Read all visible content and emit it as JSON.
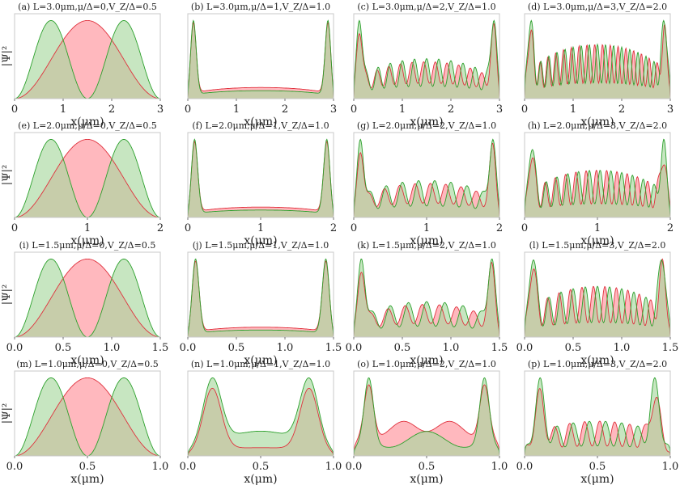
{
  "figure": {
    "xlabel": "x(μm)",
    "ylabel": "|Ψ|²",
    "colors": {
      "series_a": "#2ca02c",
      "series_a_fill": "#a9d8a0",
      "series_b": "#e0303c",
      "series_b_fill": "#ffa0a8",
      "frame": "#c8c8c8"
    }
  },
  "chart_data": [
    {
      "type": "area",
      "label": "(a)",
      "title": "L=3.0μm,μ/Δ=0,V_Z/Δ=0.5",
      "L": 3.0,
      "mu": 0,
      "vz": 0.5,
      "xlim": [
        0,
        3.0
      ],
      "xticks": [
        "0",
        "1",
        "2",
        "3"
      ],
      "xlabel": "x(μm)",
      "ylabel": "|Ψ|²",
      "grid": false
    },
    {
      "type": "area",
      "label": "(b)",
      "title": "L=3.0μm,μ/Δ=1,V_Z/Δ=1.0",
      "L": 3.0,
      "mu": 1,
      "vz": 1.0,
      "xlim": [
        0,
        3.0
      ],
      "xticks": [
        "0",
        "1",
        "2",
        "3"
      ],
      "xlabel": "x(μm)",
      "grid": false
    },
    {
      "type": "area",
      "label": "(c)",
      "title": "L=3.0μm,μ/Δ=2,V_Z/Δ=1.0",
      "L": 3.0,
      "mu": 2,
      "vz": 1.0,
      "xlim": [
        0,
        3.0
      ],
      "xticks": [
        "0",
        "1",
        "2",
        "3"
      ],
      "xlabel": "x(μm)",
      "grid": false
    },
    {
      "type": "area",
      "label": "(d)",
      "title": "L=3.0μm,μ/Δ=3,V_Z/Δ=2.0",
      "L": 3.0,
      "mu": 3,
      "vz": 2.0,
      "xlim": [
        0,
        3.0
      ],
      "xticks": [
        "0",
        "1",
        "2",
        "3"
      ],
      "xlabel": "x(μm)",
      "grid": false
    },
    {
      "type": "area",
      "label": "(e)",
      "title": "L=2.0μm,μ/Δ=0,V_Z/Δ=0.5",
      "L": 2.0,
      "mu": 0,
      "vz": 0.5,
      "xlim": [
        0,
        2.0
      ],
      "xticks": [
        "0",
        "1",
        "2"
      ],
      "xlabel": "x(μm)",
      "ylabel": "|Ψ|²",
      "grid": false
    },
    {
      "type": "area",
      "label": "(f)",
      "title": "L=2.0μm,μ/Δ=1,V_Z/Δ=1.0",
      "L": 2.0,
      "mu": 1,
      "vz": 1.0,
      "xlim": [
        0,
        2.0
      ],
      "xticks": [
        "0",
        "1",
        "2"
      ],
      "xlabel": "x(μm)",
      "grid": false
    },
    {
      "type": "area",
      "label": "(g)",
      "title": "L=2.0μm,μ/Δ=2,V_Z/Δ=1.0",
      "L": 2.0,
      "mu": 2,
      "vz": 1.0,
      "xlim": [
        0,
        2.0
      ],
      "xticks": [
        "0",
        "1",
        "2"
      ],
      "xlabel": "x(μm)",
      "grid": false
    },
    {
      "type": "area",
      "label": "(h)",
      "title": "L=2.0μm,μ/Δ=3,V_Z/Δ=2.0",
      "L": 2.0,
      "mu": 3,
      "vz": 2.0,
      "xlim": [
        0,
        2.0
      ],
      "xticks": [
        "0",
        "1",
        "2"
      ],
      "xlabel": "x(μm)",
      "grid": false
    },
    {
      "type": "area",
      "label": "(i)",
      "title": "L=1.5μm,μ/Δ=0,V_Z/Δ=0.5",
      "L": 1.5,
      "mu": 0,
      "vz": 0.5,
      "xlim": [
        0,
        1.5
      ],
      "xticks": [
        "0.0",
        "0.5",
        "1.0",
        "1.5"
      ],
      "xlabel": "x(μm)",
      "ylabel": "|Ψ|²",
      "grid": false
    },
    {
      "type": "area",
      "label": "(j)",
      "title": "L=1.5μm,μ/Δ=1,V_Z/Δ=1.0",
      "L": 1.5,
      "mu": 1,
      "vz": 1.0,
      "xlim": [
        0,
        1.5
      ],
      "xticks": [
        "0.0",
        "0.5",
        "1.0",
        "1.5"
      ],
      "xlabel": "x(μm)",
      "grid": false
    },
    {
      "type": "area",
      "label": "(k)",
      "title": "L=1.5μm,μ/Δ=2,V_Z/Δ=1.0",
      "L": 1.5,
      "mu": 2,
      "vz": 1.0,
      "xlim": [
        0,
        1.5
      ],
      "xticks": [
        "0.0",
        "0.5",
        "1.0",
        "1.5"
      ],
      "xlabel": "x(μm)",
      "grid": false
    },
    {
      "type": "area",
      "label": "(l)",
      "title": "L=1.5μm,μ/Δ=3,V_Z/Δ=2.0",
      "L": 1.5,
      "mu": 3,
      "vz": 2.0,
      "xlim": [
        0,
        1.5
      ],
      "xticks": [
        "0.0",
        "0.5",
        "1.0",
        "1.5"
      ],
      "xlabel": "x(μm)",
      "grid": false
    },
    {
      "type": "area",
      "label": "(m)",
      "title": "L=1.0μm,μ/Δ=0,V_Z/Δ=0.5",
      "L": 1.0,
      "mu": 0,
      "vz": 0.5,
      "xlim": [
        0,
        1.0
      ],
      "xticks": [
        "0.0",
        "0.5",
        "1.0"
      ],
      "xlabel": "x(μm)",
      "ylabel": "|Ψ|²",
      "grid": false
    },
    {
      "type": "area",
      "label": "(n)",
      "title": "L=1.0μm,μ/Δ=1,V_Z/Δ=1.0",
      "L": 1.0,
      "mu": 1,
      "vz": 1.0,
      "xlim": [
        0,
        1.0
      ],
      "xticks": [
        "0.0",
        "0.5",
        "1.0"
      ],
      "xlabel": "x(μm)",
      "grid": false
    },
    {
      "type": "area",
      "label": "(o)",
      "title": "L=1.0μm,μ/Δ=2,V_Z/Δ=1.0",
      "L": 1.0,
      "mu": 2,
      "vz": 1.0,
      "xlim": [
        0,
        1.0
      ],
      "xticks": [
        "0.0",
        "0.5",
        "1.0"
      ],
      "xlabel": "x(μm)",
      "grid": false
    },
    {
      "type": "area",
      "label": "(p)",
      "title": "L=1.0μm,μ/Δ=3,V_Z/Δ=2.0",
      "L": 1.0,
      "mu": 3,
      "vz": 2.0,
      "xlim": [
        0,
        1.0
      ],
      "xticks": [
        "0.0",
        "0.5",
        "1.0"
      ],
      "xlabel": "x(μm)",
      "grid": false
    }
  ]
}
